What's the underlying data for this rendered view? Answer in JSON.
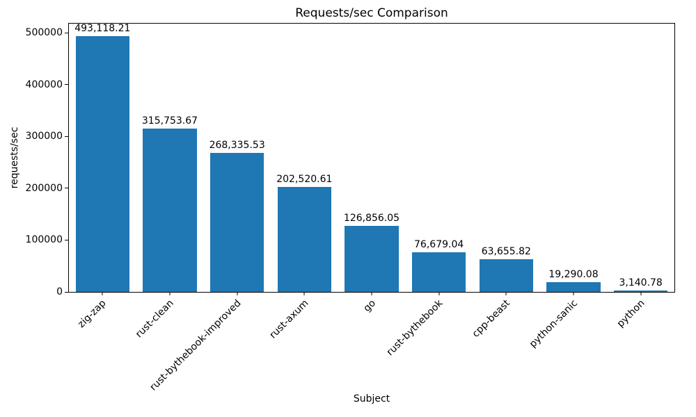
{
  "chart_data": {
    "type": "bar",
    "title": "Requests/sec Comparison",
    "xlabel": "Subject",
    "ylabel": "requests/sec",
    "categories": [
      "zig-zap",
      "rust-clean",
      "rust-bythebook-improved",
      "rust-axum",
      "go",
      "rust-bythebook",
      "cpp-beast",
      "python-sanic",
      "python"
    ],
    "values": [
      493118.21,
      315753.67,
      268335.53,
      202520.61,
      126856.05,
      76679.04,
      63655.82,
      19290.08,
      3140.78
    ],
    "value_labels": [
      "493,118.21",
      "315,753.67",
      "268,335.53",
      "202,520.61",
      "126,856.05",
      "76,679.04",
      "63,655.82",
      "19,290.08",
      "3,140.78"
    ],
    "yticks": [
      0,
      100000,
      200000,
      300000,
      400000,
      500000
    ],
    "ytick_labels": [
      "0",
      "100000",
      "200000",
      "300000",
      "400000",
      "500000"
    ],
    "ylim": [
      0,
      517774
    ],
    "bar_color": "#1f77b4",
    "bar_width_fraction": 0.8,
    "grid": false,
    "legend_position": "none",
    "x_tick_rotation_deg": 45
  }
}
